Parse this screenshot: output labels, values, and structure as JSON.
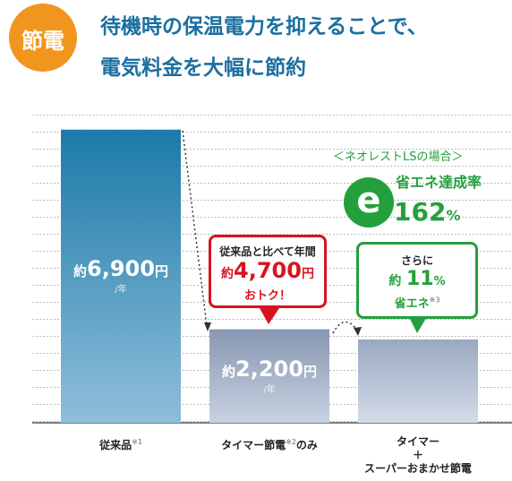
{
  "badge": "節電",
  "title_lines": [
    "待機時の保温電力を抑えることで、",
    "電気料金を大幅に節約"
  ],
  "chart_data": {
    "type": "bar",
    "categories": [
      [
        "従来品",
        "※1"
      ],
      [
        "タイマー節電",
        "※2",
        "のみ"
      ],
      [
        "タイマー",
        "＋",
        "スーパーおまかせ節電"
      ]
    ],
    "values": [
      6900,
      2200,
      1960
    ],
    "value_labels": [
      {
        "prefix": "約",
        "number": "6,900",
        "unit": "円",
        "per": "/年"
      },
      {
        "prefix": "約",
        "number": "2,200",
        "unit": "円",
        "per": "/年"
      },
      null
    ],
    "ylim": [
      0,
      7000
    ]
  },
  "callout_red": {
    "line1": "従来品と比べて年間",
    "prefix": "約",
    "number": "4,700",
    "unit": "円",
    "line3": "おトク！"
  },
  "callout_green": {
    "line1": "さらに",
    "prefix": "約",
    "number": "11",
    "unit": "%",
    "line3": "省エネ",
    "note": "※3"
  },
  "neorest": {
    "heading": "＜ネオレストLSの場合＞",
    "icon": "e",
    "label": "省エネ達成率",
    "number": "162",
    "unit": "%"
  }
}
